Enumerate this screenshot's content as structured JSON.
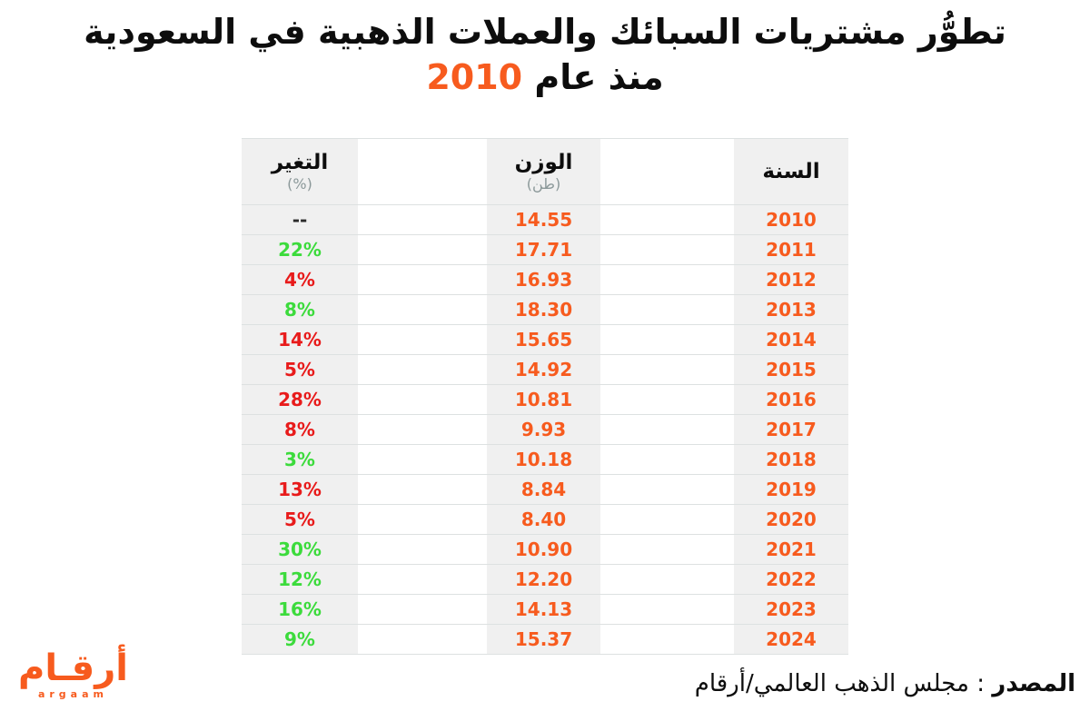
{
  "title": {
    "line1": "تطوُّر مشتريات السبائك والعملات الذهبية في السعودية",
    "line2_prefix": "منذ عام",
    "line2_year": "2010"
  },
  "table": {
    "headers": {
      "year": {
        "label": "السنة"
      },
      "weight": {
        "label": "الوزن",
        "unit": "(طن)"
      },
      "change": {
        "label": "التغير",
        "unit": "(%)"
      }
    },
    "rows": [
      {
        "year": "2010",
        "weight": "14.55",
        "change": "--",
        "trend": "neutral"
      },
      {
        "year": "2011",
        "weight": "17.71",
        "change": "22%",
        "trend": "green"
      },
      {
        "year": "2012",
        "weight": "16.93",
        "change": "4%",
        "trend": "red"
      },
      {
        "year": "2013",
        "weight": "18.30",
        "change": "8%",
        "trend": "green"
      },
      {
        "year": "2014",
        "weight": "15.65",
        "change": "14%",
        "trend": "red"
      },
      {
        "year": "2015",
        "weight": "14.92",
        "change": "5%",
        "trend": "red"
      },
      {
        "year": "2016",
        "weight": "10.81",
        "change": "28%",
        "trend": "red"
      },
      {
        "year": "2017",
        "weight": "9.93",
        "change": "8%",
        "trend": "red"
      },
      {
        "year": "2018",
        "weight": "10.18",
        "change": "3%",
        "trend": "green"
      },
      {
        "year": "2019",
        "weight": "8.84",
        "change": "13%",
        "trend": "red"
      },
      {
        "year": "2020",
        "weight": "8.40",
        "change": "5%",
        "trend": "red"
      },
      {
        "year": "2021",
        "weight": "10.90",
        "change": "30%",
        "trend": "green"
      },
      {
        "year": "2022",
        "weight": "12.20",
        "change": "12%",
        "trend": "green"
      },
      {
        "year": "2023",
        "weight": "14.13",
        "change": "16%",
        "trend": "green"
      },
      {
        "year": "2024",
        "weight": "15.37",
        "change": "9%",
        "trend": "green"
      }
    ]
  },
  "footer": {
    "source_label": "المصدر",
    "source_rest": ": مجلس الذهب العالمي/أرقام",
    "logo_arabic": "أرقـام",
    "logo_latin": "argaam"
  },
  "colors": {
    "orange": "#f75b1e",
    "green": "#3cdb3c",
    "red": "#e81b1b",
    "cell_bg": "#f0f0f0",
    "divider": "#dde1e1",
    "unit_gray": "#8b9899"
  },
  "chart_data": {
    "type": "table",
    "title": "تطوُّر مشتريات السبائك والعملات الذهبية في السعودية منذ عام 2010",
    "columns": [
      "السنة",
      "الوزن (طن)",
      "التغير (%)"
    ],
    "years": [
      2010,
      2011,
      2012,
      2013,
      2014,
      2015,
      2016,
      2017,
      2018,
      2019,
      2020,
      2021,
      2022,
      2023,
      2024
    ],
    "weights_tons": [
      14.55,
      17.71,
      16.93,
      18.3,
      15.65,
      14.92,
      10.81,
      9.93,
      10.18,
      8.84,
      8.4,
      10.9,
      12.2,
      14.13,
      15.37
    ],
    "change_percent": [
      null,
      22,
      -4,
      8,
      -14,
      -5,
      -28,
      -8,
      3,
      -13,
      -5,
      30,
      12,
      16,
      9
    ],
    "notes": "green = increase, red = decrease; 2010 baseline has no change value"
  }
}
